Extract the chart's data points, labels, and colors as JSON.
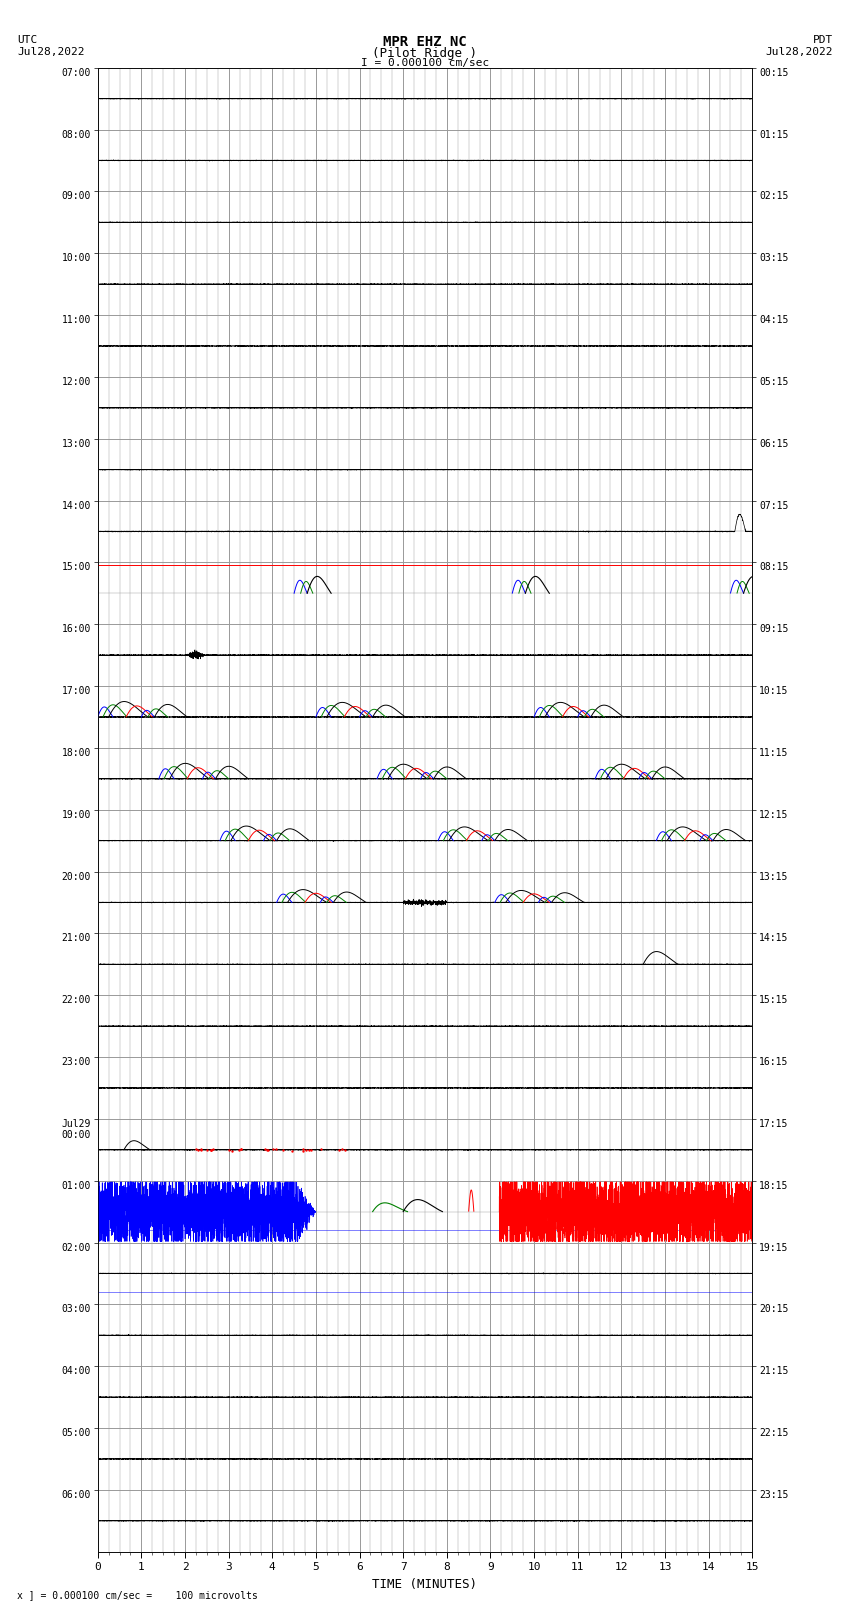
{
  "title_line1": "MPR EHZ NC",
  "title_line2": "(Pilot Ridge )",
  "scale_label": "I = 0.000100 cm/sec",
  "left_label_top": "UTC",
  "left_label_date": "Jul28,2022",
  "right_label_top": "PDT",
  "right_label_date": "Jul28,2022",
  "bottom_label": "TIME (MINUTES)",
  "footnote": "x ] = 0.000100 cm/sec =    100 microvolts",
  "xlabel_ticks": [
    0,
    1,
    2,
    3,
    4,
    5,
    6,
    7,
    8,
    9,
    10,
    11,
    12,
    13,
    14,
    15
  ],
  "num_rows": 24,
  "row_labels_left": [
    "07:00",
    "08:00",
    "09:00",
    "10:00",
    "11:00",
    "12:00",
    "13:00",
    "14:00",
    "15:00",
    "16:00",
    "17:00",
    "18:00",
    "19:00",
    "20:00",
    "21:00",
    "22:00",
    "23:00",
    "Jul29\n00:00",
    "01:00",
    "02:00",
    "03:00",
    "04:00",
    "05:00",
    "06:00"
  ],
  "row_labels_right": [
    "00:15",
    "01:15",
    "02:15",
    "03:15",
    "04:15",
    "05:15",
    "06:15",
    "07:15",
    "08:15",
    "09:15",
    "10:15",
    "11:15",
    "12:15",
    "13:15",
    "14:15",
    "15:15",
    "16:15",
    "17:15",
    "18:15",
    "19:15",
    "20:15",
    "21:15",
    "22:15",
    "23:15"
  ],
  "background_color": "#ffffff",
  "grid_color": "#999999",
  "trace_color_black": "#000000",
  "trace_color_blue": "#0000ff",
  "trace_color_red": "#ff0000",
  "trace_color_green": "#008000",
  "x_min": 0,
  "x_max": 15,
  "fig_width": 8.5,
  "fig_height": 16.13
}
